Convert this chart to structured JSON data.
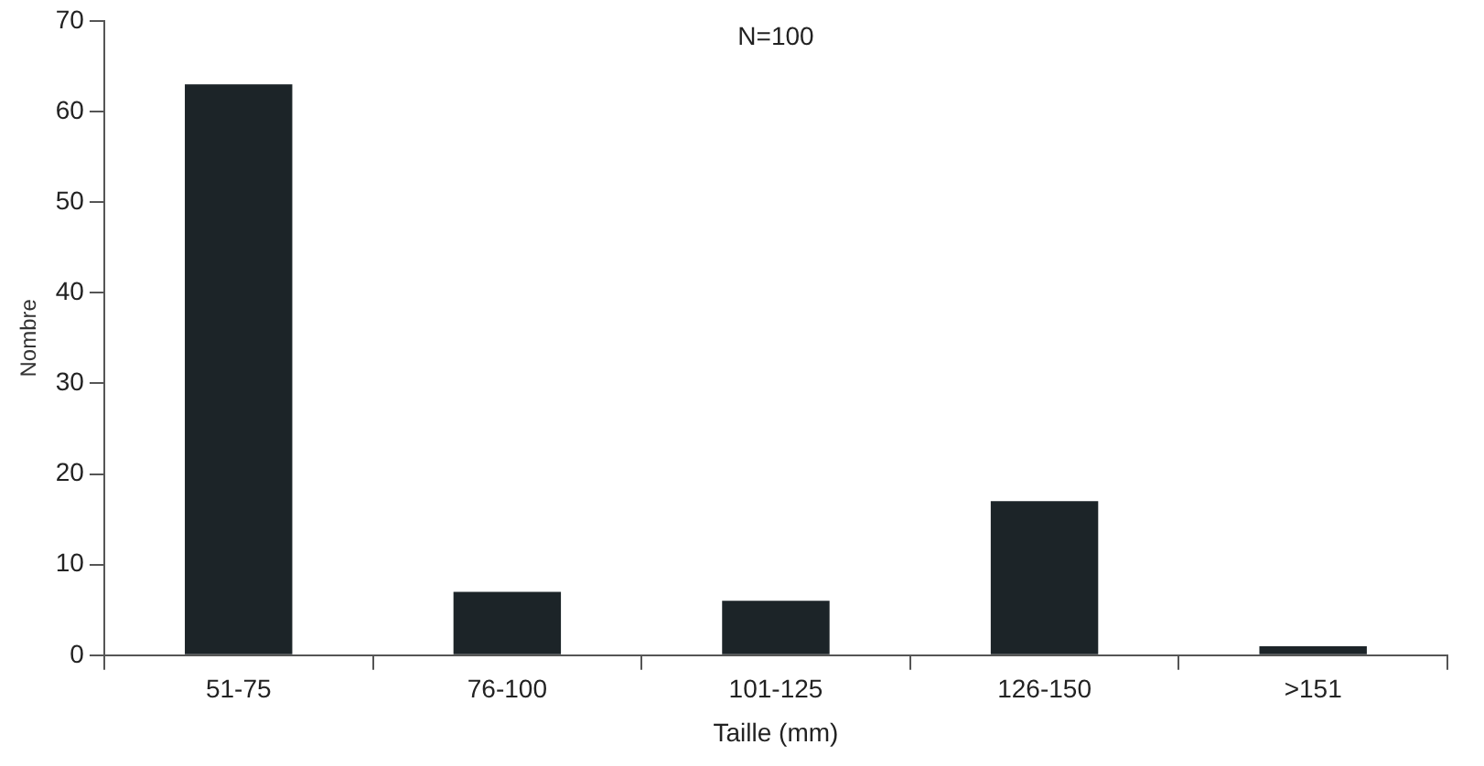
{
  "chart_data": {
    "type": "bar",
    "xlabel": "Taille (mm)",
    "ylabel": "Nombre",
    "annotations": [
      "N=100"
    ],
    "categories": [
      "51-75",
      "76-100",
      "101-125",
      "126-150",
      ">151"
    ],
    "values": [
      63,
      7,
      6,
      17,
      1
    ],
    "color": "#1c2428",
    "ylim": [
      0,
      70
    ],
    "yticks": [
      0,
      10,
      20,
      30,
      40,
      50,
      60,
      70
    ],
    "grid": false,
    "legend": false
  }
}
